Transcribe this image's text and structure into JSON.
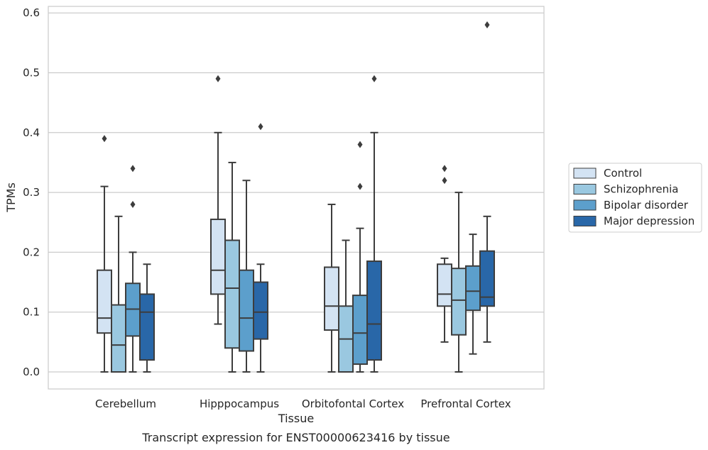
{
  "chart_data": {
    "type": "boxplot",
    "title": "",
    "caption": "Transcript expression for ENST00000623416 by tissue",
    "xlabel": "Tissue",
    "ylabel": "TPMs",
    "ylim": [
      -0.028,
      0.612
    ],
    "yticks": [
      0.0,
      0.1,
      0.2,
      0.3,
      0.4,
      0.5,
      0.6
    ],
    "ytick_labels": [
      "0.0",
      "0.1",
      "0.2",
      "0.3",
      "0.4",
      "0.5",
      "0.6"
    ],
    "grid": "horizontal",
    "legend_position": "right",
    "categories": [
      "Cerebellum",
      "Hipppocampus",
      "Orbitofontal Cortex",
      "Prefrontal Cortex"
    ],
    "series": [
      {
        "name": "Control",
        "color": "#d3e3f3",
        "boxes": [
          {
            "whislo": 0.0,
            "q1": 0.065,
            "med": 0.09,
            "q3": 0.17,
            "whishi": 0.31,
            "fliers": [
              0.39
            ]
          },
          {
            "whislo": 0.08,
            "q1": 0.13,
            "med": 0.17,
            "q3": 0.255,
            "whishi": 0.4,
            "fliers": [
              0.49
            ]
          },
          {
            "whislo": 0.0,
            "q1": 0.07,
            "med": 0.11,
            "q3": 0.175,
            "whishi": 0.28,
            "fliers": []
          },
          {
            "whislo": 0.05,
            "q1": 0.11,
            "med": 0.13,
            "q3": 0.18,
            "whishi": 0.19,
            "fliers": [
              0.32,
              0.34
            ]
          }
        ]
      },
      {
        "name": "Schizophrenia",
        "color": "#9ac8e0",
        "boxes": [
          {
            "whislo": 0.0,
            "q1": 0.0,
            "med": 0.045,
            "q3": 0.112,
            "whishi": 0.26,
            "fliers": []
          },
          {
            "whislo": 0.0,
            "q1": 0.04,
            "med": 0.14,
            "q3": 0.22,
            "whishi": 0.35,
            "fliers": []
          },
          {
            "whislo": 0.0,
            "q1": 0.0,
            "med": 0.055,
            "q3": 0.11,
            "whishi": 0.22,
            "fliers": []
          },
          {
            "whislo": 0.0,
            "q1": 0.062,
            "med": 0.12,
            "q3": 0.173,
            "whishi": 0.3,
            "fliers": []
          }
        ]
      },
      {
        "name": "Bipolar disorder",
        "color": "#5c9fcc",
        "boxes": [
          {
            "whislo": 0.0,
            "q1": 0.06,
            "med": 0.105,
            "q3": 0.148,
            "whishi": 0.2,
            "fliers": [
              0.28,
              0.34
            ]
          },
          {
            "whislo": 0.0,
            "q1": 0.035,
            "med": 0.09,
            "q3": 0.17,
            "whishi": 0.32,
            "fliers": []
          },
          {
            "whislo": 0.0,
            "q1": 0.013,
            "med": 0.065,
            "q3": 0.128,
            "whishi": 0.24,
            "fliers": [
              0.31,
              0.38
            ]
          },
          {
            "whislo": 0.03,
            "q1": 0.103,
            "med": 0.135,
            "q3": 0.177,
            "whishi": 0.23,
            "fliers": []
          }
        ]
      },
      {
        "name": "Major depression",
        "color": "#2967a8",
        "boxes": [
          {
            "whislo": 0.0,
            "q1": 0.02,
            "med": 0.1,
            "q3": 0.13,
            "whishi": 0.18,
            "fliers": []
          },
          {
            "whislo": 0.0,
            "q1": 0.055,
            "med": 0.1,
            "q3": 0.15,
            "whishi": 0.18,
            "fliers": [
              0.41
            ]
          },
          {
            "whislo": 0.0,
            "q1": 0.02,
            "med": 0.08,
            "q3": 0.185,
            "whishi": 0.4,
            "fliers": [
              0.49
            ]
          },
          {
            "whislo": 0.05,
            "q1": 0.11,
            "med": 0.125,
            "q3": 0.202,
            "whishi": 0.26,
            "fliers": [
              0.58
            ]
          }
        ]
      }
    ]
  }
}
